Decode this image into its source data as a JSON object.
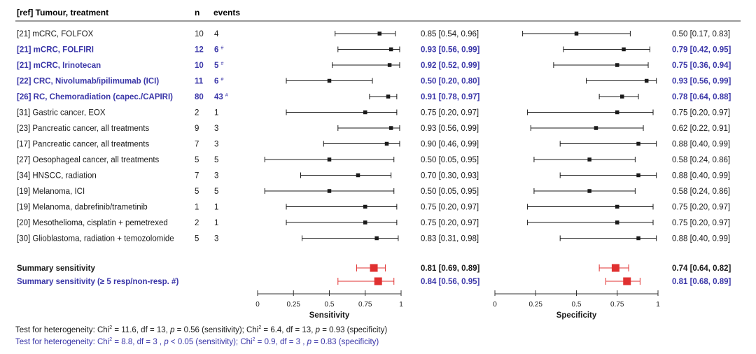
{
  "colors": {
    "ink": "#1a1a1a",
    "highlight": "#3a36a8",
    "summary": "#e03030",
    "axis": "#333333"
  },
  "header": {
    "study": "[ref] Tumour, treatment",
    "n": "n",
    "events": "events"
  },
  "chart_data": {
    "type": "forest",
    "panels": [
      {
        "key": "sensitivity",
        "xlabel": "Sensitivity",
        "xlim": [
          0,
          1
        ],
        "ticks": [
          "0",
          "0.25",
          "0.5",
          "0.75",
          "1"
        ]
      },
      {
        "key": "specificity",
        "xlabel": "Specificity",
        "xlim": [
          0,
          1
        ],
        "ticks": [
          "0",
          "0.25",
          "0.5",
          "0.75",
          "1"
        ]
      }
    ],
    "studies": [
      {
        "label": "[21] mCRC, FOLFOX",
        "n": "10",
        "events": "4",
        "mark": "",
        "highlight": false,
        "sens": {
          "est": 0.85,
          "lo": 0.54,
          "hi": 0.96,
          "text": "0.85 [0.54, 0.96]"
        },
        "spec": {
          "est": 0.5,
          "lo": 0.17,
          "hi": 0.83,
          "text": "0.50 [0.17, 0.83]"
        }
      },
      {
        "label": "[21] mCRC, FOLFIRI",
        "n": "12",
        "events": "6",
        "mark": "#",
        "highlight": true,
        "sens": {
          "est": 0.93,
          "lo": 0.56,
          "hi": 0.99,
          "text": "0.93 [0.56, 0.99]"
        },
        "spec": {
          "est": 0.79,
          "lo": 0.42,
          "hi": 0.95,
          "text": "0.79 [0.42, 0.95]"
        }
      },
      {
        "label": "[21] mCRC, Irinotecan",
        "n": "10",
        "events": "5",
        "mark": "#",
        "highlight": true,
        "sens": {
          "est": 0.92,
          "lo": 0.52,
          "hi": 0.99,
          "text": "0.92 [0.52, 0.99]"
        },
        "spec": {
          "est": 0.75,
          "lo": 0.36,
          "hi": 0.94,
          "text": "0.75 [0.36, 0.94]"
        }
      },
      {
        "label": "[22] CRC, Nivolumab/ipilimumab (ICI)",
        "n": "11",
        "events": "6",
        "mark": "#",
        "highlight": true,
        "sens": {
          "est": 0.5,
          "lo": 0.2,
          "hi": 0.8,
          "text": "0.50 [0.20, 0.80]"
        },
        "spec": {
          "est": 0.93,
          "lo": 0.56,
          "hi": 0.99,
          "text": "0.93 [0.56, 0.99]"
        }
      },
      {
        "label": "[26] RC, Chemoradiation (capec./CAPIRI)",
        "n": "80",
        "events": "43",
        "mark": "#",
        "highlight": true,
        "sens": {
          "est": 0.91,
          "lo": 0.78,
          "hi": 0.97,
          "text": "0.91 [0.78, 0.97]"
        },
        "spec": {
          "est": 0.78,
          "lo": 0.64,
          "hi": 0.88,
          "text": "0.78 [0.64, 0.88]"
        }
      },
      {
        "label": "[31] Gastric cancer, EOX",
        "n": "2",
        "events": "1",
        "mark": "",
        "highlight": false,
        "sens": {
          "est": 0.75,
          "lo": 0.2,
          "hi": 0.97,
          "text": "0.75 [0.20, 0.97]"
        },
        "spec": {
          "est": 0.75,
          "lo": 0.2,
          "hi": 0.97,
          "text": "0.75 [0.20, 0.97]"
        }
      },
      {
        "label": "[23] Pancreatic cancer,  all treatments",
        "n": "9",
        "events": "3",
        "mark": "",
        "highlight": false,
        "sens": {
          "est": 0.93,
          "lo": 0.56,
          "hi": 0.99,
          "text": "0.93 [0.56, 0.99]"
        },
        "spec": {
          "est": 0.62,
          "lo": 0.22,
          "hi": 0.91,
          "text": "0.62 [0.22, 0.91]"
        }
      },
      {
        "label": "[17] Pancreatic cancer, all treatments",
        "n": "7",
        "events": "3",
        "mark": "",
        "highlight": false,
        "sens": {
          "est": 0.9,
          "lo": 0.46,
          "hi": 0.99,
          "text": "0.90 [0.46, 0.99]"
        },
        "spec": {
          "est": 0.88,
          "lo": 0.4,
          "hi": 0.99,
          "text": "0.88 [0.40, 0.99]"
        }
      },
      {
        "label": "[27] Oesophageal cancer, all treatments",
        "n": "5",
        "events": "5",
        "mark": "",
        "highlight": false,
        "sens": {
          "est": 0.5,
          "lo": 0.05,
          "hi": 0.95,
          "text": "0.50 [0.05, 0.95]"
        },
        "spec": {
          "est": 0.58,
          "lo": 0.24,
          "hi": 0.86,
          "text": "0.58 [0.24, 0.86]"
        }
      },
      {
        "label": "[34] HNSCC, radiation",
        "n": "7",
        "events": "3",
        "mark": "",
        "highlight": false,
        "sens": {
          "est": 0.7,
          "lo": 0.3,
          "hi": 0.93,
          "text": "0.70 [0.30, 0.93]"
        },
        "spec": {
          "est": 0.88,
          "lo": 0.4,
          "hi": 0.99,
          "text": "0.88 [0.40, 0.99]"
        }
      },
      {
        "label": "[19] Melanoma, ICI",
        "n": "5",
        "events": "5",
        "mark": "",
        "highlight": false,
        "sens": {
          "est": 0.5,
          "lo": 0.05,
          "hi": 0.95,
          "text": "0.50 [0.05, 0.95]"
        },
        "spec": {
          "est": 0.58,
          "lo": 0.24,
          "hi": 0.86,
          "text": "0.58 [0.24, 0.86]"
        }
      },
      {
        "label": "[19] Melanoma, dabrefinib/trametinib",
        "n": "1",
        "events": "1",
        "mark": "",
        "highlight": false,
        "sens": {
          "est": 0.75,
          "lo": 0.2,
          "hi": 0.97,
          "text": "0.75 [0.20, 0.97]"
        },
        "spec": {
          "est": 0.75,
          "lo": 0.2,
          "hi": 0.97,
          "text": "0.75 [0.20, 0.97]"
        }
      },
      {
        "label": "[20] Mesothelioma, cisplatin + pemetrexed",
        "n": "2",
        "events": "1",
        "mark": "",
        "highlight": false,
        "sens": {
          "est": 0.75,
          "lo": 0.2,
          "hi": 0.97,
          "text": "0.75 [0.20, 0.97]"
        },
        "spec": {
          "est": 0.75,
          "lo": 0.2,
          "hi": 0.97,
          "text": "0.75 [0.20, 0.97]"
        }
      },
      {
        "label": "[30] Glioblastoma, radiation + temozolomide",
        "n": "5",
        "events": "3",
        "mark": "",
        "highlight": false,
        "sens": {
          "est": 0.83,
          "lo": 0.31,
          "hi": 0.98,
          "text": "0.83 [0.31, 0.98]"
        },
        "spec": {
          "est": 0.88,
          "lo": 0.4,
          "hi": 0.99,
          "text": "0.88 [0.40, 0.99]"
        }
      }
    ],
    "summaries": [
      {
        "label": "Summary sensitivity",
        "highlight": false,
        "sens": {
          "est": 0.81,
          "lo": 0.69,
          "hi": 0.89,
          "text": "0.81 [0.69, 0.89]"
        },
        "spec": {
          "est": 0.74,
          "lo": 0.64,
          "hi": 0.82,
          "text": "0.74 [0.64, 0.82]"
        }
      },
      {
        "label": "Summary sensitivity (≥ 5 resp/non-resp. #)",
        "highlight": true,
        "sens": {
          "est": 0.84,
          "lo": 0.56,
          "hi": 0.95,
          "text": "0.84 [0.56, 0.95]"
        },
        "spec": {
          "est": 0.81,
          "lo": 0.68,
          "hi": 0.89,
          "text": "0.81 [0.68, 0.89]"
        }
      }
    ]
  },
  "footnotes": {
    "line1": {
      "p1": "Test for heterogeneity: Chi",
      "s1": "2",
      "p2": " = 11.6, df = 13, ",
      "i1": "p",
      "p3": " = 0.56 (sensitivity); Chi",
      "s2": "2",
      "p4": " = 6.4, df = 13, ",
      "i2": "p",
      "p5": " = 0.93 (specificity)"
    },
    "line2": {
      "p1": "Test for heterogeneity: Chi",
      "s1": "2",
      "p2": " = 8.8, df = 3 , ",
      "i1": "p",
      "p3": " < 0.05 (sensitivity); Chi",
      "s2": "2",
      "p4": " = 0.9, df = 3 , ",
      "i2": "p",
      "p5": " = 0.83 (specificity)"
    }
  }
}
